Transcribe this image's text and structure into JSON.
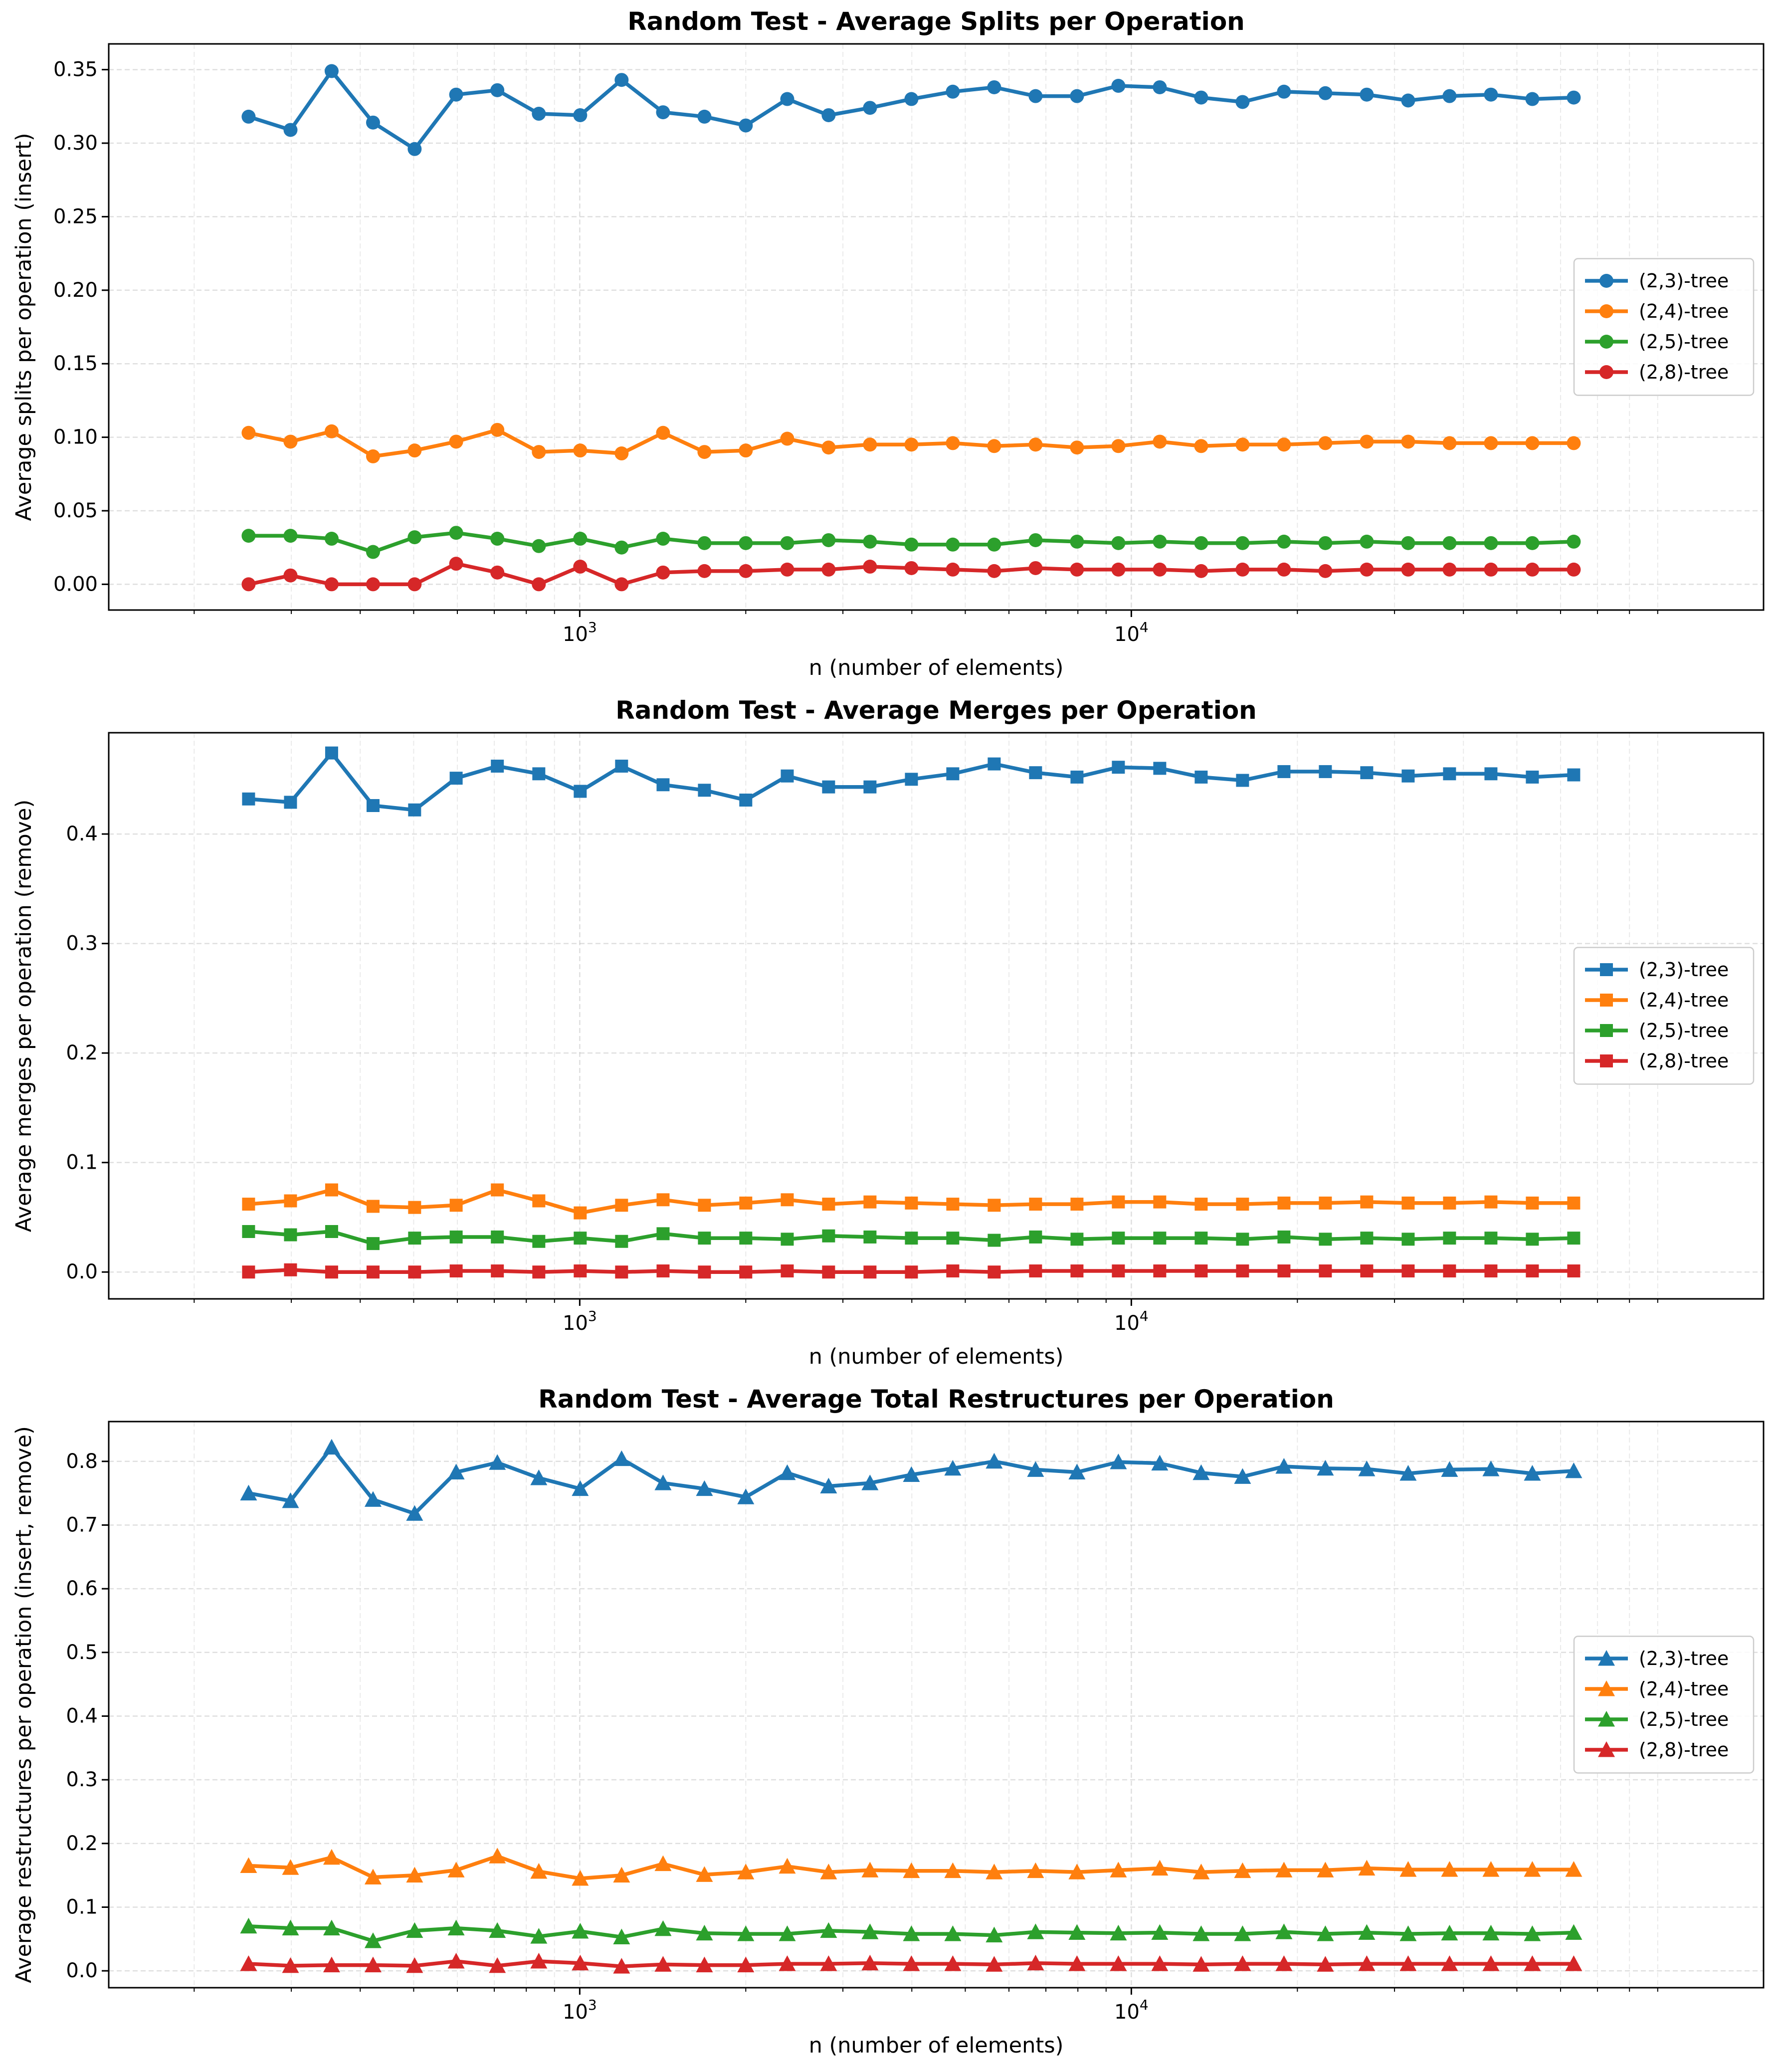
{
  "chart_data": [
    {
      "type": "line",
      "title": "Random Test - Average Splits per Operation",
      "xlabel": "n (number of elements)",
      "ylabel": "Average splits per operation (insert)",
      "xscale": "log",
      "xlim": [
        140,
        140000
      ],
      "ylim": [
        -0.0175,
        0.3675
      ],
      "yticks": [
        0.0,
        0.05,
        0.1,
        0.15,
        0.2,
        0.25,
        0.3,
        0.35
      ],
      "ytick_labels": [
        "0.00",
        "0.05",
        "0.10",
        "0.15",
        "0.20",
        "0.25",
        "0.30",
        "0.35"
      ],
      "grid": true,
      "legend": "center-right",
      "marker": "circle",
      "x": [
        251,
        299,
        355,
        422,
        502,
        597,
        709,
        843,
        1002,
        1191,
        1416,
        1683,
        2000,
        2378,
        2826,
        3359,
        3993,
        4746,
        5641,
        6705,
        7970,
        9473,
        11260,
        13384,
        15909,
        18910,
        22477,
        26717,
        31757,
        37747,
        44867,
        53330,
        63390
      ],
      "series": [
        {
          "name": "(2,3)-tree",
          "color": "#1f77b4",
          "values": [
            0.318,
            0.309,
            0.349,
            0.314,
            0.296,
            0.333,
            0.336,
            0.32,
            0.319,
            0.343,
            0.321,
            0.318,
            0.312,
            0.33,
            0.319,
            0.324,
            0.33,
            0.335,
            0.338,
            0.332,
            0.332,
            0.339,
            0.338,
            0.331,
            0.328,
            0.335,
            0.334,
            0.333,
            0.329,
            0.332,
            0.333,
            0.33,
            0.331
          ]
        },
        {
          "name": "(2,4)-tree",
          "color": "#ff7f0e",
          "values": [
            0.103,
            0.097,
            0.104,
            0.087,
            0.091,
            0.097,
            0.105,
            0.09,
            0.091,
            0.089,
            0.103,
            0.09,
            0.091,
            0.099,
            0.093,
            0.095,
            0.095,
            0.096,
            0.094,
            0.095,
            0.093,
            0.094,
            0.097,
            0.094,
            0.095,
            0.095,
            0.096,
            0.097,
            0.097,
            0.096,
            0.096,
            0.096,
            0.096
          ]
        },
        {
          "name": "(2,5)-tree",
          "color": "#2ca02c",
          "values": [
            0.033,
            0.033,
            0.031,
            0.022,
            0.032,
            0.035,
            0.031,
            0.026,
            0.031,
            0.025,
            0.031,
            0.028,
            0.028,
            0.028,
            0.03,
            0.029,
            0.027,
            0.027,
            0.027,
            0.03,
            0.029,
            0.028,
            0.029,
            0.028,
            0.028,
            0.029,
            0.028,
            0.029,
            0.028,
            0.028,
            0.028,
            0.028,
            0.029
          ]
        },
        {
          "name": "(2,8)-tree",
          "color": "#d62728",
          "values": [
            0.0,
            0.006,
            0.0,
            0.0,
            0.0,
            0.014,
            0.008,
            0.0,
            0.012,
            0.0,
            0.008,
            0.009,
            0.009,
            0.01,
            0.01,
            0.012,
            0.011,
            0.01,
            0.009,
            0.011,
            0.01,
            0.01,
            0.01,
            0.009,
            0.01,
            0.01,
            0.009,
            0.01,
            0.01,
            0.01,
            0.01,
            0.01,
            0.01
          ]
        }
      ]
    },
    {
      "type": "line",
      "title": "Random Test - Average Merges per Operation",
      "xlabel": "n (number of elements)",
      "ylabel": "Average merges per operation (remove)",
      "xscale": "log",
      "xlim": [
        140,
        140000
      ],
      "ylim": [
        -0.0245,
        0.4925
      ],
      "yticks": [
        0.0,
        0.1,
        0.2,
        0.3,
        0.4
      ],
      "ytick_labels": [
        "0.0",
        "0.1",
        "0.2",
        "0.3",
        "0.4"
      ],
      "grid": true,
      "legend": "center-right",
      "marker": "square",
      "x": [
        251,
        299,
        355,
        422,
        502,
        597,
        709,
        843,
        1002,
        1191,
        1416,
        1683,
        2000,
        2378,
        2826,
        3359,
        3993,
        4746,
        5641,
        6705,
        7970,
        9473,
        11260,
        13384,
        15909,
        18910,
        22477,
        26717,
        31757,
        37747,
        44867,
        53330,
        63390
      ],
      "series": [
        {
          "name": "(2,3)-tree",
          "color": "#1f77b4",
          "values": [
            0.432,
            0.429,
            0.474,
            0.426,
            0.422,
            0.451,
            0.462,
            0.455,
            0.439,
            0.462,
            0.445,
            0.44,
            0.431,
            0.453,
            0.443,
            0.443,
            0.45,
            0.455,
            0.464,
            0.456,
            0.452,
            0.461,
            0.46,
            0.452,
            0.449,
            0.457,
            0.457,
            0.456,
            0.453,
            0.455,
            0.455,
            0.452,
            0.454
          ]
        },
        {
          "name": "(2,4)-tree",
          "color": "#ff7f0e",
          "values": [
            0.062,
            0.065,
            0.075,
            0.06,
            0.059,
            0.061,
            0.075,
            0.065,
            0.054,
            0.061,
            0.066,
            0.061,
            0.063,
            0.066,
            0.062,
            0.064,
            0.063,
            0.062,
            0.061,
            0.062,
            0.062,
            0.064,
            0.064,
            0.062,
            0.062,
            0.063,
            0.063,
            0.064,
            0.063,
            0.063,
            0.064,
            0.063,
            0.063
          ]
        },
        {
          "name": "(2,5)-tree",
          "color": "#2ca02c",
          "values": [
            0.037,
            0.034,
            0.037,
            0.026,
            0.031,
            0.032,
            0.032,
            0.028,
            0.031,
            0.028,
            0.035,
            0.031,
            0.031,
            0.03,
            0.033,
            0.032,
            0.031,
            0.031,
            0.029,
            0.032,
            0.03,
            0.031,
            0.031,
            0.031,
            0.03,
            0.032,
            0.03,
            0.031,
            0.03,
            0.031,
            0.031,
            0.03,
            0.031
          ]
        },
        {
          "name": "(2,8)-tree",
          "color": "#d62728",
          "values": [
            0.0,
            0.002,
            0.0,
            0.0,
            0.0,
            0.001,
            0.001,
            0.0,
            0.001,
            0.0,
            0.001,
            0.0,
            0.0,
            0.001,
            0.0,
            0.0,
            0.0,
            0.001,
            0.0,
            0.001,
            0.001,
            0.001,
            0.001,
            0.001,
            0.001,
            0.001,
            0.001,
            0.001,
            0.001,
            0.001,
            0.001,
            0.001,
            0.001
          ]
        }
      ]
    },
    {
      "type": "line",
      "title": "Random Test - Average Total Restructures per Operation",
      "xlabel": "n (number of elements)",
      "ylabel": "Average restructures per operation (insert, remove)",
      "xscale": "log",
      "xlim": [
        140,
        140000
      ],
      "ylim": [
        -0.0265,
        0.8625
      ],
      "yticks": [
        0.0,
        0.1,
        0.2,
        0.3,
        0.4,
        0.5,
        0.6,
        0.7,
        0.8
      ],
      "ytick_labels": [
        "0.0",
        "0.1",
        "0.2",
        "0.3",
        "0.4",
        "0.5",
        "0.6",
        "0.7",
        "0.8"
      ],
      "grid": true,
      "legend": "center-right",
      "marker": "triangle",
      "x": [
        251,
        299,
        355,
        422,
        502,
        597,
        709,
        843,
        1002,
        1191,
        1416,
        1683,
        2000,
        2378,
        2826,
        3359,
        3993,
        4746,
        5641,
        6705,
        7970,
        9473,
        11260,
        13384,
        15909,
        18910,
        22477,
        26717,
        31757,
        37747,
        44867,
        53330,
        63390
      ],
      "series": [
        {
          "name": "(2,3)-tree",
          "color": "#1f77b4",
          "values": [
            0.75,
            0.738,
            0.822,
            0.74,
            0.718,
            0.783,
            0.798,
            0.774,
            0.757,
            0.804,
            0.766,
            0.757,
            0.744,
            0.782,
            0.761,
            0.766,
            0.779,
            0.789,
            0.8,
            0.787,
            0.783,
            0.799,
            0.797,
            0.782,
            0.776,
            0.792,
            0.789,
            0.788,
            0.781,
            0.787,
            0.788,
            0.781,
            0.785
          ]
        },
        {
          "name": "(2,4)-tree",
          "color": "#ff7f0e",
          "values": [
            0.165,
            0.162,
            0.178,
            0.147,
            0.15,
            0.158,
            0.18,
            0.156,
            0.145,
            0.15,
            0.168,
            0.151,
            0.155,
            0.164,
            0.155,
            0.158,
            0.157,
            0.157,
            0.155,
            0.157,
            0.155,
            0.158,
            0.161,
            0.155,
            0.157,
            0.158,
            0.158,
            0.161,
            0.159,
            0.159,
            0.159,
            0.159,
            0.159
          ]
        },
        {
          "name": "(2,5)-tree",
          "color": "#2ca02c",
          "values": [
            0.07,
            0.067,
            0.067,
            0.047,
            0.063,
            0.067,
            0.063,
            0.054,
            0.062,
            0.053,
            0.066,
            0.059,
            0.058,
            0.058,
            0.063,
            0.061,
            0.058,
            0.058,
            0.056,
            0.061,
            0.06,
            0.059,
            0.06,
            0.058,
            0.058,
            0.061,
            0.058,
            0.06,
            0.058,
            0.059,
            0.059,
            0.058,
            0.06
          ]
        },
        {
          "name": "(2,8)-tree",
          "color": "#d62728",
          "values": [
            0.011,
            0.008,
            0.009,
            0.009,
            0.008,
            0.015,
            0.008,
            0.015,
            0.012,
            0.007,
            0.01,
            0.009,
            0.009,
            0.011,
            0.011,
            0.012,
            0.011,
            0.011,
            0.01,
            0.012,
            0.011,
            0.011,
            0.011,
            0.01,
            0.011,
            0.011,
            0.01,
            0.011,
            0.011,
            0.011,
            0.011,
            0.011,
            0.011
          ]
        }
      ]
    }
  ]
}
